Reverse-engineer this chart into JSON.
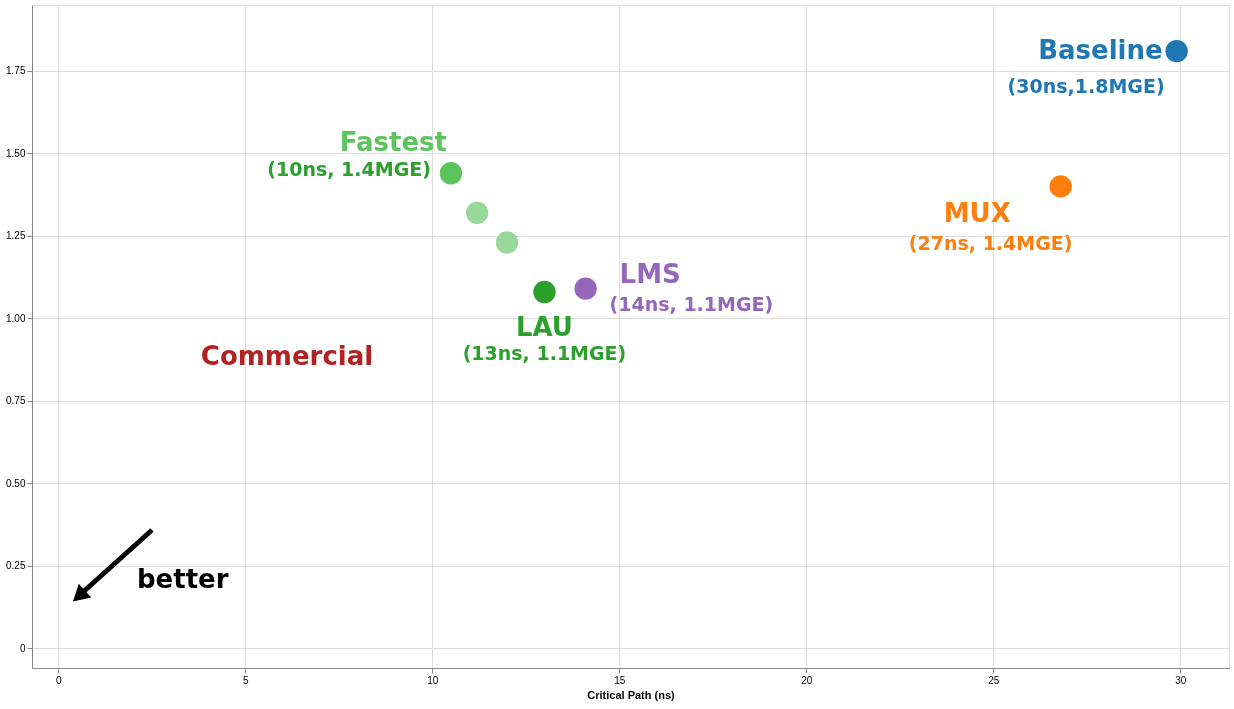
{
  "chart_data": {
    "type": "scatter",
    "xlabel": "Critical Path (ns)",
    "xlim": [
      -0.7,
      31.3
    ],
    "xticks": [
      0,
      5,
      10,
      15,
      20,
      25,
      30
    ],
    "ylim": [
      -0.06,
      1.95
    ],
    "yticks": [
      0,
      0.25,
      {
        "value": 0.5,
        "label": "0.50"
      },
      0.75,
      {
        "value": 1.0,
        "label": "1.00"
      },
      1.25,
      {
        "value": 1.5,
        "label": "1.50"
      },
      1.75
    ],
    "grid": true,
    "marker": "circle",
    "series": [
      {
        "name": "Baseline",
        "color": "#1f77b4",
        "x": [
          29.9
        ],
        "values": [
          1.81
        ]
      },
      {
        "name": "MUX",
        "color": "#ff7f0e",
        "x": [
          26.8
        ],
        "values": [
          1.4
        ]
      },
      {
        "name": "LMS",
        "color": "#9467bd",
        "x": [
          14.1
        ],
        "values": [
          1.09
        ]
      },
      {
        "name": "Fastest",
        "color": "#5cc45c",
        "x": [
          10.5
        ],
        "values": [
          1.44
        ]
      },
      {
        "color": "#98d898",
        "x": [
          11.2
        ],
        "values": [
          1.32
        ]
      },
      {
        "color": "#98d898",
        "x": [
          12.0
        ],
        "values": [
          1.23
        ]
      },
      {
        "name": "LAU",
        "color": "#2ca02c",
        "x": [
          13.0
        ],
        "values": [
          1.08
        ]
      }
    ],
    "annotations": [
      {
        "text": "(30ns,1.8MGE)",
        "x": 29.9,
        "y": 1.81
      },
      {
        "text": "(27ns, 1.4MGE)",
        "x": 26.8,
        "y": 1.4
      },
      {
        "text": "(14ns, 1.1MGE)",
        "x": 14.1,
        "y": 1.09
      },
      {
        "text": "(10ns, 1.4MGE)",
        "x": 10.5,
        "y": 1.44
      },
      {
        "text": "(13ns, 1.1MGE)",
        "x": 13.0,
        "y": 1.08
      },
      "Commercial",
      "better"
    ]
  }
}
